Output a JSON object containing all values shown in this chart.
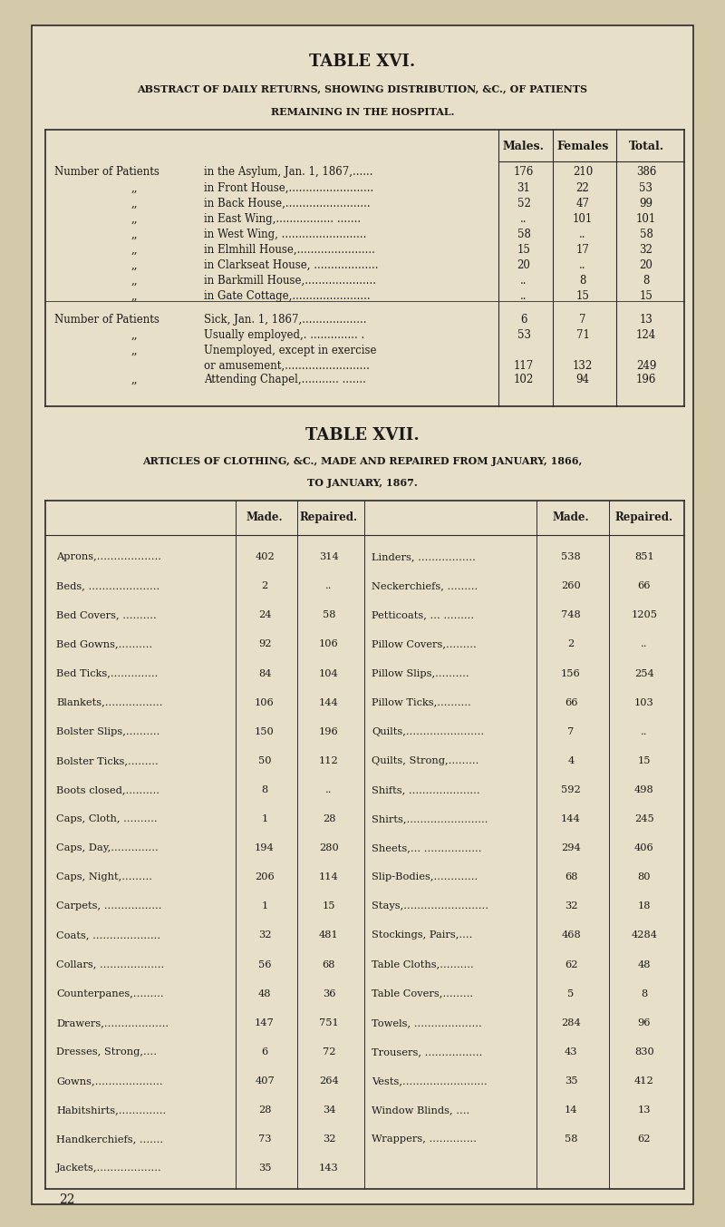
{
  "bg_color": "#e8dfc8",
  "page_bg": "#d4c9a8",
  "table_bg": "#ede5cf",
  "border_color": "#2a2a2a",
  "text_color": "#1a1a1a",
  "table16_title": "TABLE XVI.",
  "table16_subtitle1": "ABSTRACT OF DAILY RETURNS, SHOWING DISTRIBUTION, &C., OF PATIENTS",
  "table16_subtitle2": "REMAINING IN THE HOSPITAL.",
  "table16_headers": [
    "Males.",
    "Females",
    "Total."
  ],
  "table16_rows": [
    [
      "Number of Patients",
      "in the Asylum, Jan. 1, 1867,......",
      "176",
      "210",
      "386"
    ],
    [
      ",,",
      "in Front House,.........................",
      "31",
      "22",
      "53"
    ],
    [
      ",,",
      "in Back House,.........................",
      "52",
      "47",
      "99"
    ],
    [
      ",,",
      "in East Wing,................. .......",
      "..",
      "101",
      "101"
    ],
    [
      ",,",
      "in West Wing, .........................",
      "58",
      "..",
      "58"
    ],
    [
      ",,",
      "in Elmhill House,.......................",
      "15",
      "17",
      "32"
    ],
    [
      ",,",
      "in Clarkseat House, ...................",
      "20",
      "..",
      "20"
    ],
    [
      ",,",
      "in Barkmill House,.....................",
      "..",
      "8",
      "8"
    ],
    [
      ",,",
      "in Gate Cottage,.......................",
      "..",
      "15",
      "15"
    ],
    [
      "",
      "",
      "",
      "",
      ""
    ],
    [
      "Number of Patients",
      "Sick, Jan. 1, 1867,...................",
      "6",
      "7",
      "13"
    ],
    [
      ",,",
      "Usually employed,. .............. .",
      "53",
      "71",
      "124"
    ],
    [
      ",,",
      "Unemployed, except in exercise",
      "",
      "",
      ""
    ],
    [
      "",
      "or amusement,.........................",
      "117",
      "132",
      "249"
    ],
    [
      ",,",
      "Attending Chapel,........... .......",
      "102",
      "94",
      "196"
    ]
  ],
  "table17_title": "TABLE XVII.",
  "table17_subtitle1": "ARTICLES OF CLOTHING, &C., MADE AND REPAIRED FROM JANUARY, 1866,",
  "table17_subtitle2": "TO JANUARY, 1867.",
  "table17_col_headers": [
    "Made.",
    "Repaired.",
    "",
    "Made.",
    "Repaired."
  ],
  "table17_left": [
    [
      "Aprons,...................",
      "402",
      "314"
    ],
    [
      "Beds, .....................",
      "2",
      ".."
    ],
    [
      "Bed Covers, ..........",
      "24",
      "58"
    ],
    [
      "Bed Gowns,..........",
      "92",
      "106"
    ],
    [
      "Bed Ticks,..............",
      "84",
      "104"
    ],
    [
      "Blankets,.................",
      "106",
      "144"
    ],
    [
      "Bolster Slips,..........",
      "150",
      "196"
    ],
    [
      "Bolster Ticks,.........",
      "50",
      "112"
    ],
    [
      "Boots closed,..........",
      "8",
      ".."
    ],
    [
      "Caps, Cloth, ..........",
      "1",
      "28"
    ],
    [
      "Caps, Day,..............",
      "194",
      "280"
    ],
    [
      "Caps, Night,.........",
      "206",
      "114"
    ],
    [
      "Carpets, .................",
      "1",
      "15"
    ],
    [
      "Coats, ....................",
      "32",
      "481"
    ],
    [
      "Collars, ...................",
      "56",
      "68"
    ],
    [
      "Counterpanes,.........",
      "48",
      "36"
    ],
    [
      "Drawers,...................",
      "147",
      "751"
    ],
    [
      "Dresses, Strong,....",
      "6",
      "72"
    ],
    [
      "Gowns,....................",
      "407",
      "264"
    ],
    [
      "Habitshirts,..............",
      "28",
      "34"
    ],
    [
      "Handkerchiefs, .......",
      "73",
      "32"
    ],
    [
      "Jackets,...................",
      "35",
      "143"
    ]
  ],
  "table17_right": [
    [
      "Linders, .................",
      "538",
      "851"
    ],
    [
      "Neckerchiefs, .........",
      "260",
      "66"
    ],
    [
      "Petticoats, ... .........",
      "748",
      "1205"
    ],
    [
      "Pillow Covers,.........",
      "2",
      ".."
    ],
    [
      "Pillow Slips,..........",
      "156",
      "254"
    ],
    [
      "Pillow Ticks,..........",
      "66",
      "103"
    ],
    [
      "Quilts,.......................",
      "7",
      ".."
    ],
    [
      "Quilts, Strong,.........",
      "4",
      "15"
    ],
    [
      "Shifts, .....................",
      "592",
      "498"
    ],
    [
      "Shirts,........................",
      "144",
      "245"
    ],
    [
      "Sheets,... .................",
      "294",
      "406"
    ],
    [
      "Slip-Bodies,.............",
      "68",
      "80"
    ],
    [
      "Stays,.........................",
      "32",
      "18"
    ],
    [
      "Stockings, Pairs,....",
      "468",
      "4284"
    ],
    [
      "Table Cloths,..........",
      "62",
      "48"
    ],
    [
      "Table Covers,.........",
      "5",
      "8"
    ],
    [
      "Towels, ....................",
      "284",
      "96"
    ],
    [
      "Trousers, .................",
      "43",
      "830"
    ],
    [
      "Vests,.........................",
      "35",
      "412"
    ],
    [
      "Window Blinds, ....",
      "14",
      "13"
    ],
    [
      "Wrappers, ..............",
      "58",
      "62"
    ],
    [
      "",
      "",
      ""
    ]
  ],
  "page_number": "22"
}
